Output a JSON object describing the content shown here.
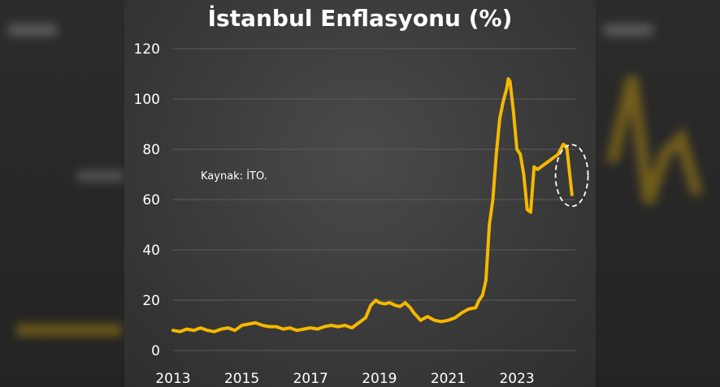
{
  "chart_data": {
    "type": "line",
    "title": "İstanbul Enflasyonu (%)",
    "annotation": "Kaynak: İTO.",
    "xlabel": "",
    "ylabel": "",
    "ylim": [
      0,
      120
    ],
    "yticks": [
      0,
      20,
      40,
      60,
      80,
      100,
      120
    ],
    "xticks": [
      "2013",
      "2015",
      "2017",
      "2019",
      "2021",
      "2023"
    ],
    "xrange": [
      2013.0,
      2024.7
    ],
    "grid": "horizontal",
    "line_color": "#f5b800",
    "highlight": "dashed-ellipse-around-last-point",
    "series": [
      {
        "x": [
          2013.0,
          2013.2,
          2013.4,
          2013.6,
          2013.8,
          2014.0,
          2014.2,
          2014.4,
          2014.6,
          2014.8,
          2015.0,
          2015.2,
          2015.4,
          2015.6,
          2015.8,
          2016.0,
          2016.2,
          2016.4,
          2016.6,
          2016.8,
          2017.0,
          2017.2,
          2017.4,
          2017.6,
          2017.8,
          2018.0,
          2018.2,
          2018.4,
          2018.6,
          2018.75,
          2018.9,
          2019.0,
          2019.15,
          2019.3,
          2019.45,
          2019.6,
          2019.75,
          2019.9,
          2020.0,
          2020.2,
          2020.4,
          2020.6,
          2020.8,
          2021.0,
          2021.2,
          2021.4,
          2021.6,
          2021.8,
          2021.9,
          2022.0,
          2022.1,
          2022.2,
          2022.3,
          2022.4,
          2022.5,
          2022.6,
          2022.7,
          2022.75,
          2022.8,
          2022.9,
          2023.0,
          2023.1,
          2023.2,
          2023.3,
          2023.4,
          2023.5,
          2023.6,
          2023.8,
          2024.0,
          2024.2,
          2024.35,
          2024.45,
          2024.6
        ],
        "y": [
          8,
          7.5,
          8.5,
          8,
          9,
          8,
          7.5,
          8.5,
          9,
          8,
          10,
          10.5,
          11,
          10,
          9.5,
          9.5,
          8.5,
          9,
          8,
          8.5,
          9,
          8.5,
          9.5,
          10,
          9.5,
          10,
          9,
          11,
          13,
          18,
          20,
          19,
          18.5,
          19,
          18,
          17.5,
          19,
          17,
          15,
          12,
          13.5,
          12,
          11.5,
          12,
          13,
          15,
          16.5,
          17,
          20,
          22,
          28,
          50,
          60,
          78,
          92,
          99,
          104,
          108,
          107,
          95,
          80,
          78,
          70,
          56,
          55,
          73,
          72,
          74,
          76,
          78,
          82,
          81,
          62
        ]
      }
    ]
  }
}
